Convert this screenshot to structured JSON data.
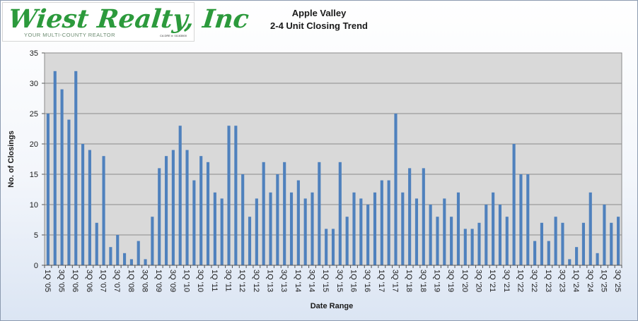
{
  "logo": {
    "wordmark": "Wiest Realty, Inc",
    "tagline": "YOUR MULTI-COUNTY REALTOR",
    "license": "CA DRE #: 01163800"
  },
  "colors": {
    "bar": "#4f81bd",
    "plot_bg": "#d9d9d9",
    "logo_green": "#2c9a3c"
  },
  "chart_data": {
    "type": "bar",
    "title": "Apple Valley",
    "subtitle": "2-4 Unit Closing Trend",
    "xlabel": "Date Range",
    "ylabel": "No. of Closings",
    "ylim": [
      0,
      35
    ],
    "yticks": [
      0,
      5,
      10,
      15,
      20,
      25,
      30,
      35
    ],
    "grid": true,
    "legend": "none",
    "categories": [
      "1Q '05",
      "2Q '05",
      "3Q '05",
      "4Q '05",
      "1Q '06",
      "2Q '06",
      "3Q '06",
      "4Q '06",
      "1Q '07",
      "2Q '07",
      "3Q '07",
      "4Q '07",
      "1Q '08",
      "2Q '08",
      "3Q '08",
      "4Q '08",
      "1Q '09",
      "2Q '09",
      "3Q '09",
      "4Q '09",
      "1Q '10",
      "2Q '10",
      "3Q '10",
      "4Q '10",
      "1Q '11",
      "2Q '11",
      "3Q '11",
      "4Q '11",
      "1Q '12",
      "2Q '12",
      "3Q '12",
      "4Q '12",
      "1Q '13",
      "2Q '13",
      "3Q '13",
      "4Q '13",
      "1Q '14",
      "2Q '14",
      "3Q '14",
      "4Q '14",
      "1Q '15",
      "2Q '15",
      "3Q '15",
      "4Q '15",
      "1Q '16",
      "2Q '16",
      "3Q '16",
      "4Q '16",
      "1Q '17",
      "2Q '17",
      "3Q '17",
      "4Q '17",
      "1Q '18",
      "2Q '18",
      "3Q '18",
      "4Q '18",
      "1Q '19",
      "2Q '19",
      "3Q '19",
      "4Q '19",
      "1Q '20",
      "2Q '20",
      "3Q '20",
      "4Q '20",
      "1Q '21",
      "2Q '21",
      "3Q '21",
      "4Q '21",
      "1Q '22",
      "2Q '22",
      "3Q '22",
      "4Q '22",
      "1Q '23",
      "2Q '23",
      "3Q '23",
      "4Q '23",
      "1Q '24",
      "2Q '24",
      "3Q '24",
      "4Q '24",
      "1Q '25",
      "2Q '25",
      "3Q '25"
    ],
    "tick_labels": [
      "1Q '05",
      "3Q '05",
      "1Q '06",
      "3Q '06",
      "1Q '07",
      "3Q '07",
      "1Q '08",
      "3Q '08",
      "1Q '09",
      "3Q '09",
      "1Q '10",
      "3Q '10",
      "1Q '11",
      "3Q '11",
      "1Q '12",
      "3Q '12",
      "1Q '13",
      "3Q '13",
      "1Q '14",
      "3Q '14",
      "1Q '15",
      "3Q '15",
      "1Q '16",
      "3Q '16",
      "1Q '17",
      "3Q '17",
      "1Q '18",
      "3Q '18",
      "1Q '19",
      "3Q '19",
      "1Q '20",
      "3Q '20",
      "1Q '21",
      "3Q '21",
      "1Q '22",
      "3Q '22",
      "1Q '23",
      "3Q '23",
      "1Q '24",
      "3Q '24",
      "1Q '25",
      "3Q '25"
    ],
    "values": [
      25,
      32,
      29,
      24,
      32,
      20,
      19,
      7,
      18,
      3,
      5,
      2,
      1,
      4,
      1,
      8,
      16,
      18,
      19,
      23,
      19,
      14,
      18,
      17,
      12,
      11,
      23,
      23,
      15,
      8,
      11,
      17,
      12,
      15,
      17,
      12,
      14,
      11,
      12,
      17,
      6,
      6,
      17,
      8,
      12,
      11,
      10,
      12,
      14,
      14,
      25,
      12,
      16,
      11,
      16,
      10,
      8,
      11,
      8,
      12,
      6,
      6,
      7,
      10,
      12,
      10,
      8,
      20,
      15,
      15,
      4,
      7,
      4,
      8,
      7,
      1,
      3,
      7,
      12,
      2,
      10,
      7,
      8
    ]
  }
}
